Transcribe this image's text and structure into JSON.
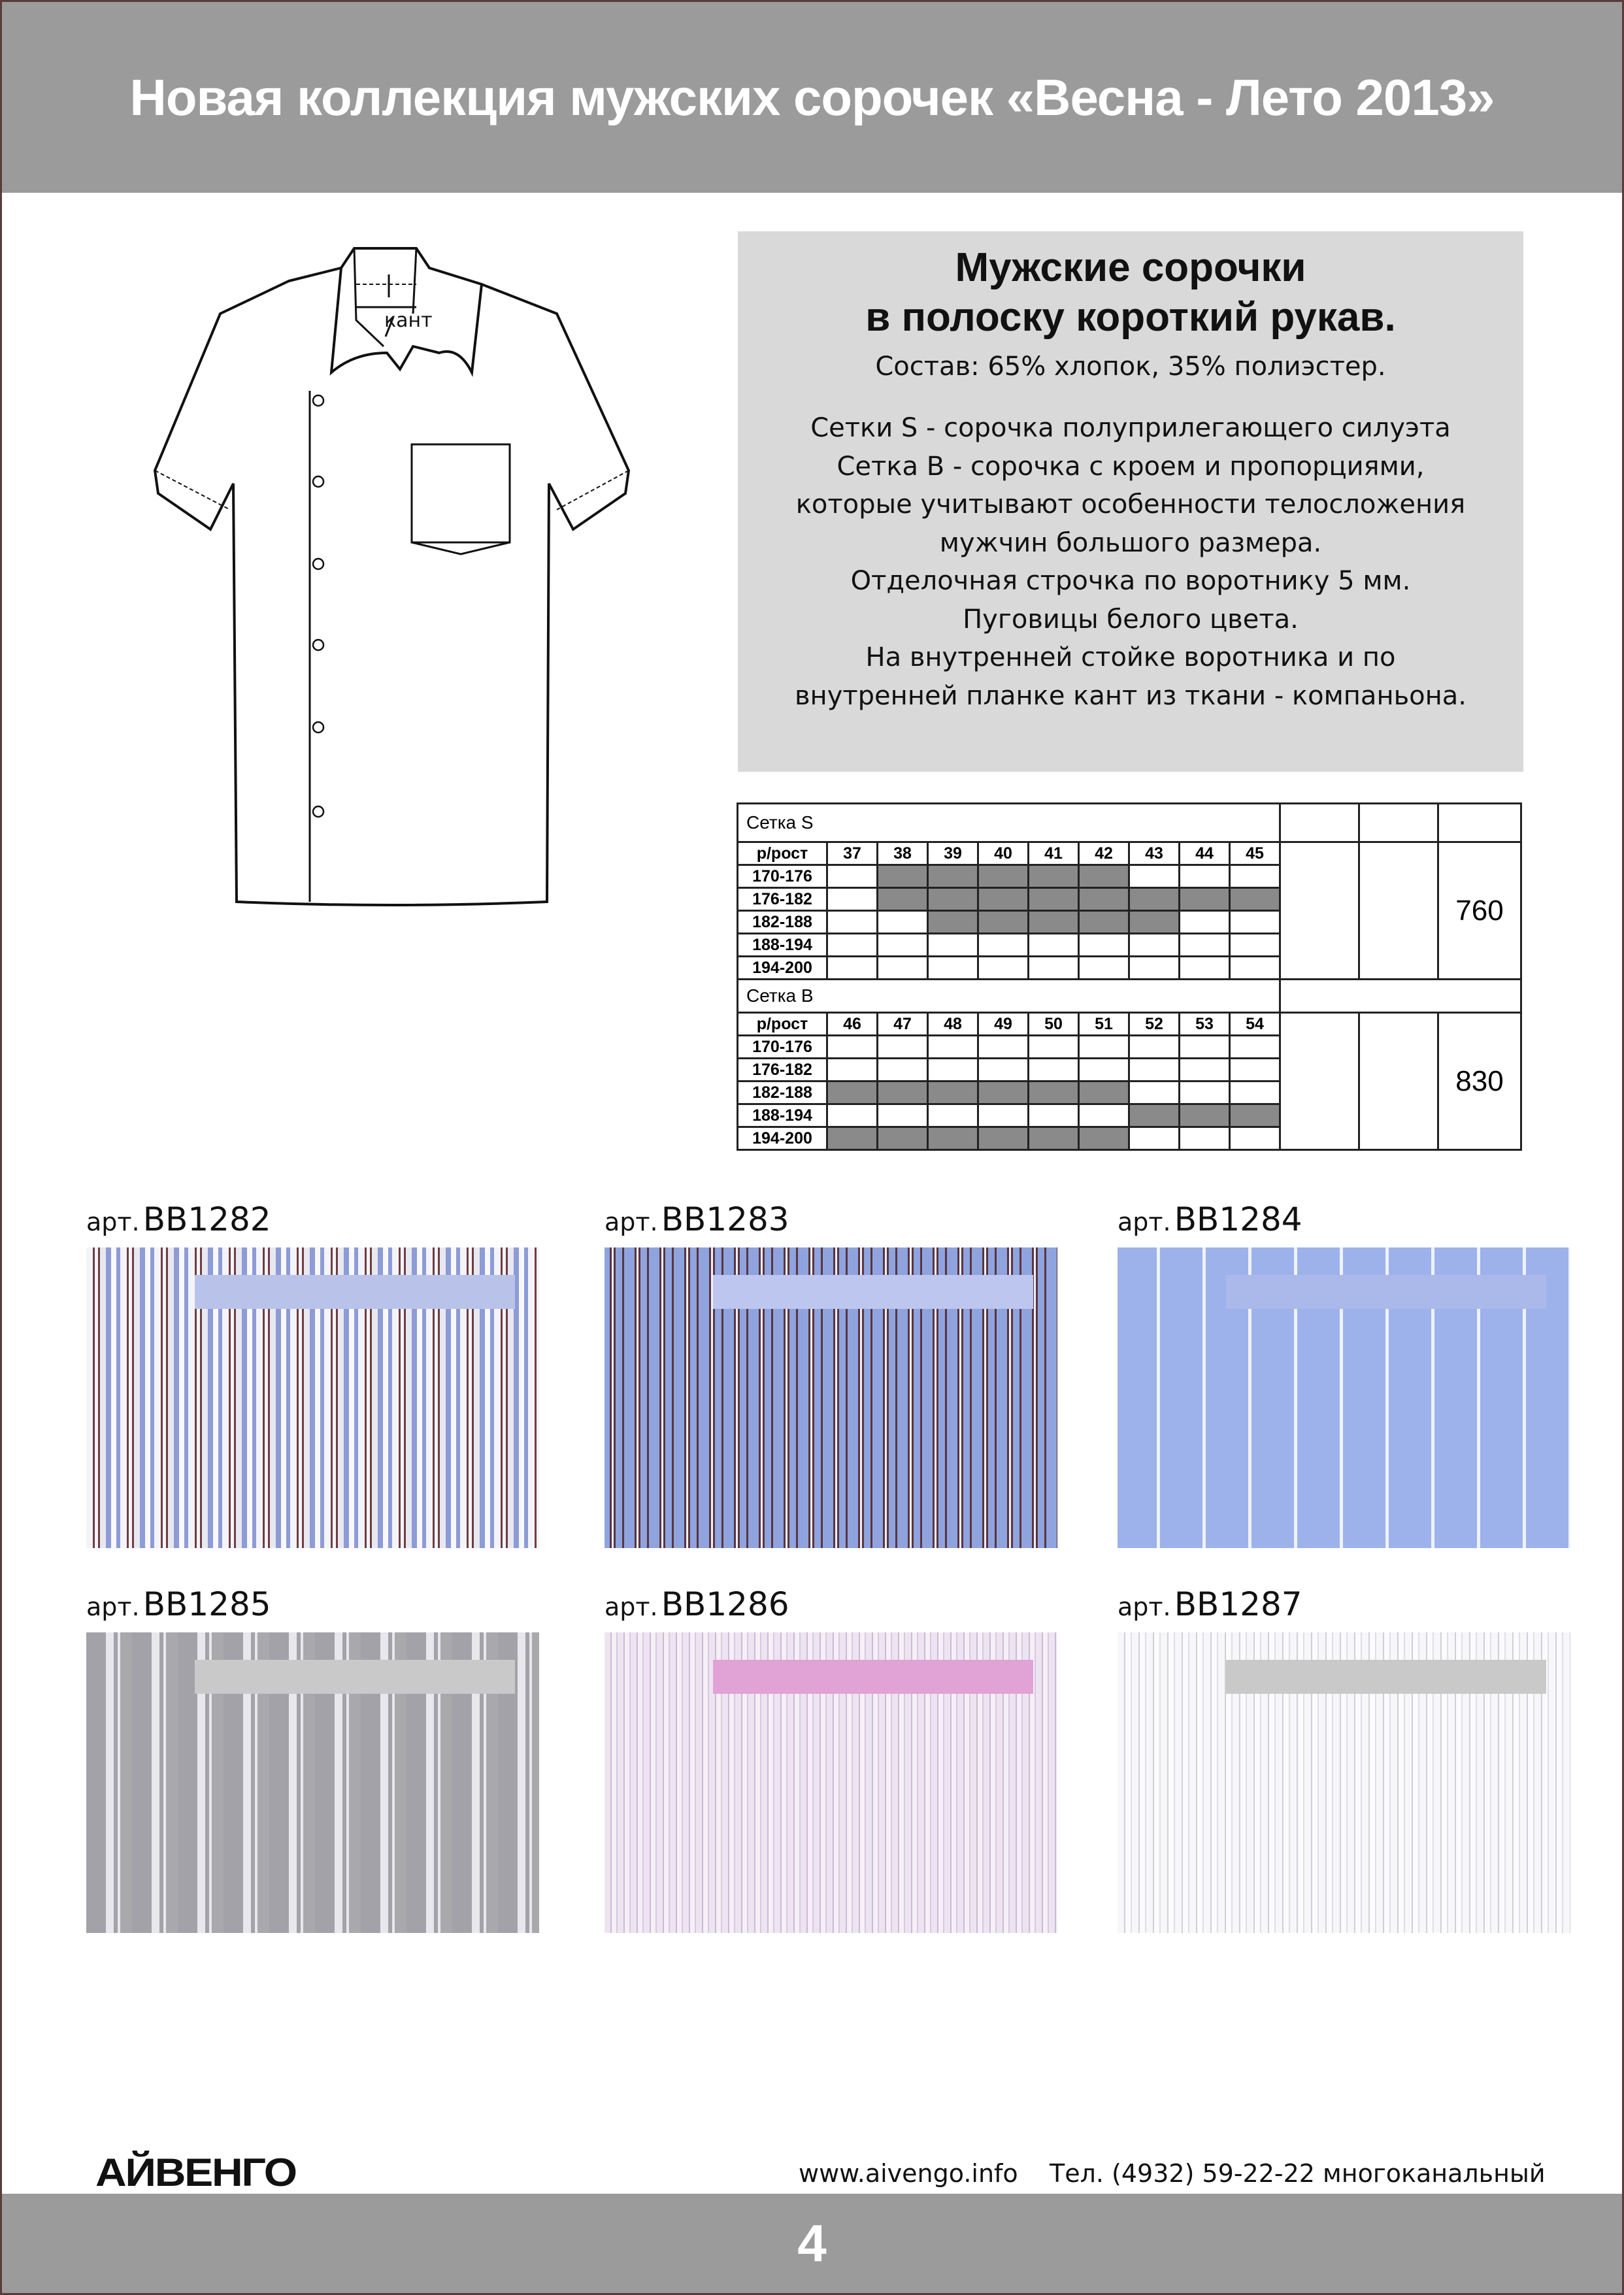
{
  "header": {
    "title": "Новая коллекция мужских сорочек «Весна - Лето 2013»"
  },
  "drawing": {
    "label": "кант"
  },
  "info": {
    "title_line1": "Мужские сорочки",
    "title_line2": "в полоску короткий рукав.",
    "composition": "Состав: 65% хлопок, 35% полиэстер.",
    "lines": [
      "Сетки S - сорочка полуприлегающего силуэта",
      "Сетка B - сорочка с кроем и пропорциями,",
      "которые учитывают особенности телосложения",
      "мужчин большого размера.",
      "Отделочная строчка по воротнику 5 мм.",
      "Пуговицы белого цвета.",
      "На внутренней стойке воротника и по",
      "внутренней планке кант из ткани - компаньона."
    ]
  },
  "size_table": {
    "sections": [
      {
        "title": "Сетка S",
        "row_header": "р/рост",
        "sizes": [
          "37",
          "38",
          "39",
          "40",
          "41",
          "42",
          "43",
          "44",
          "45"
        ],
        "price": "760",
        "rows": [
          {
            "height": "170-176",
            "available": [
              0,
              1,
              1,
              1,
              1,
              1,
              0,
              0,
              0
            ]
          },
          {
            "height": "176-182",
            "available": [
              0,
              1,
              1,
              1,
              1,
              1,
              1,
              1,
              1
            ]
          },
          {
            "height": "182-188",
            "available": [
              0,
              0,
              1,
              1,
              1,
              1,
              1,
              0,
              0
            ]
          },
          {
            "height": "188-194",
            "available": [
              0,
              0,
              0,
              0,
              0,
              0,
              0,
              0,
              0
            ]
          },
          {
            "height": "194-200",
            "available": [
              0,
              0,
              0,
              0,
              0,
              0,
              0,
              0,
              0
            ]
          }
        ]
      },
      {
        "title": "Сетка B",
        "row_header": "р/рост",
        "sizes": [
          "46",
          "47",
          "48",
          "49",
          "50",
          "51",
          "52",
          "53",
          "54"
        ],
        "price": "830",
        "rows": [
          {
            "height": "170-176",
            "available": [
              0,
              0,
              0,
              0,
              0,
              0,
              0,
              0,
              0
            ]
          },
          {
            "height": "176-182",
            "available": [
              0,
              0,
              0,
              0,
              0,
              0,
              0,
              0,
              0
            ]
          },
          {
            "height": "182-188",
            "available": [
              1,
              1,
              1,
              1,
              1,
              1,
              0,
              0,
              0
            ]
          },
          {
            "height": "188-194",
            "available": [
              0,
              0,
              0,
              0,
              0,
              0,
              1,
              1,
              1
            ]
          },
          {
            "height": "194-200",
            "available": [
              1,
              1,
              1,
              1,
              1,
              1,
              0,
              0,
              0
            ]
          }
        ]
      }
    ]
  },
  "swatches": [
    {
      "prefix": "арт.",
      "code": "BB1282"
    },
    {
      "prefix": "арт.",
      "code": "BB1283"
    },
    {
      "prefix": "арт.",
      "code": "BB1284"
    },
    {
      "prefix": "арт.",
      "code": "BB1285"
    },
    {
      "prefix": "арт.",
      "code": "BB1286"
    },
    {
      "prefix": "арт.",
      "code": "BB1287"
    }
  ],
  "footer": {
    "logo": "АЙВЕНГО",
    "website": "www.aivengo.info",
    "phone": "Тел. (4932) 59-22-22 многоканальный",
    "page_number": "4"
  }
}
